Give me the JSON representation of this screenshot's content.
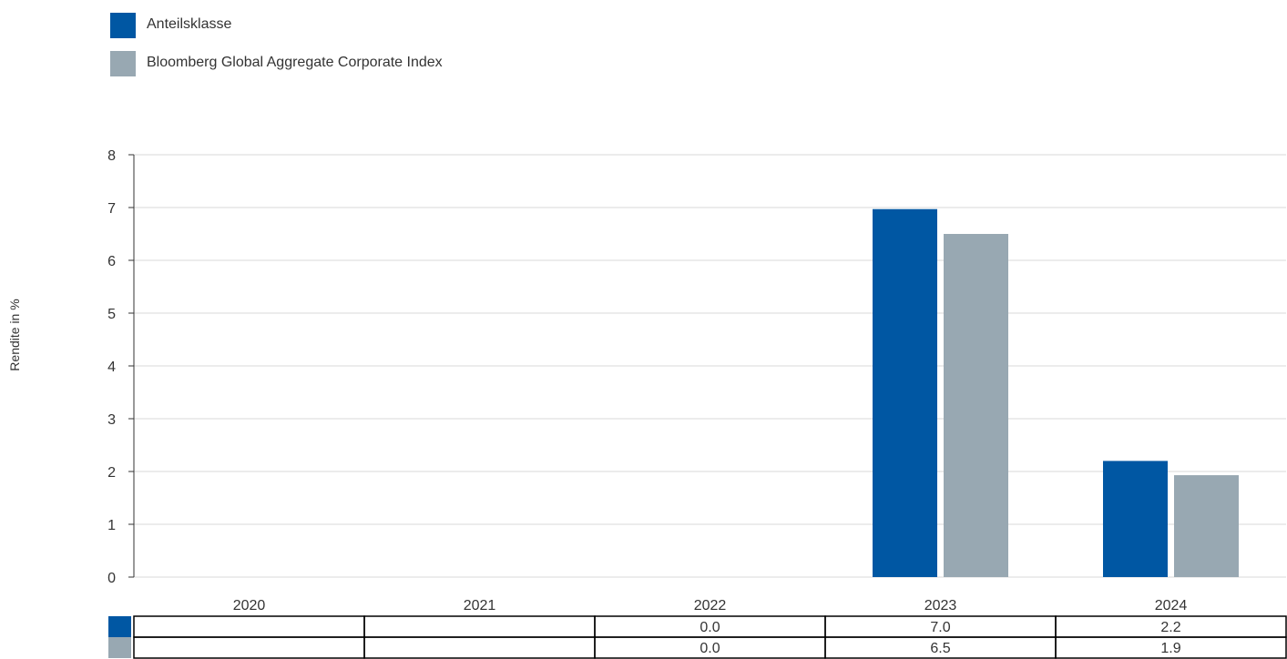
{
  "legend": [
    {
      "label": "Anteilsklasse",
      "color": "#0057a3"
    },
    {
      "label": "Bloomberg Global Aggregate Corporate Index",
      "color": "#98a8b2"
    }
  ],
  "chart_data": {
    "type": "bar",
    "categories": [
      "2020",
      "2021",
      "2022",
      "2023",
      "2024"
    ],
    "series": [
      {
        "name": "Anteilsklasse",
        "color": "#0057a3",
        "values": [
          null,
          null,
          0.0,
          6.97,
          2.2
        ]
      },
      {
        "name": "Bloomberg Global Aggregate Corporate Index",
        "color": "#98a8b2",
        "values": [
          null,
          null,
          0.0,
          6.5,
          1.93
        ]
      }
    ],
    "table": [
      [
        "",
        "",
        "0.0",
        "7.0",
        "2.2"
      ],
      [
        "",
        "",
        "0.0",
        "6.5",
        "1.9"
      ]
    ],
    "yticks": [
      "0",
      "1",
      "2",
      "3",
      "4",
      "5",
      "6",
      "7",
      "8"
    ],
    "ylabel": "Rendite in %",
    "xlabel": "",
    "ylim": [
      0,
      8
    ],
    "grid": true,
    "legend_position": "top-left"
  }
}
